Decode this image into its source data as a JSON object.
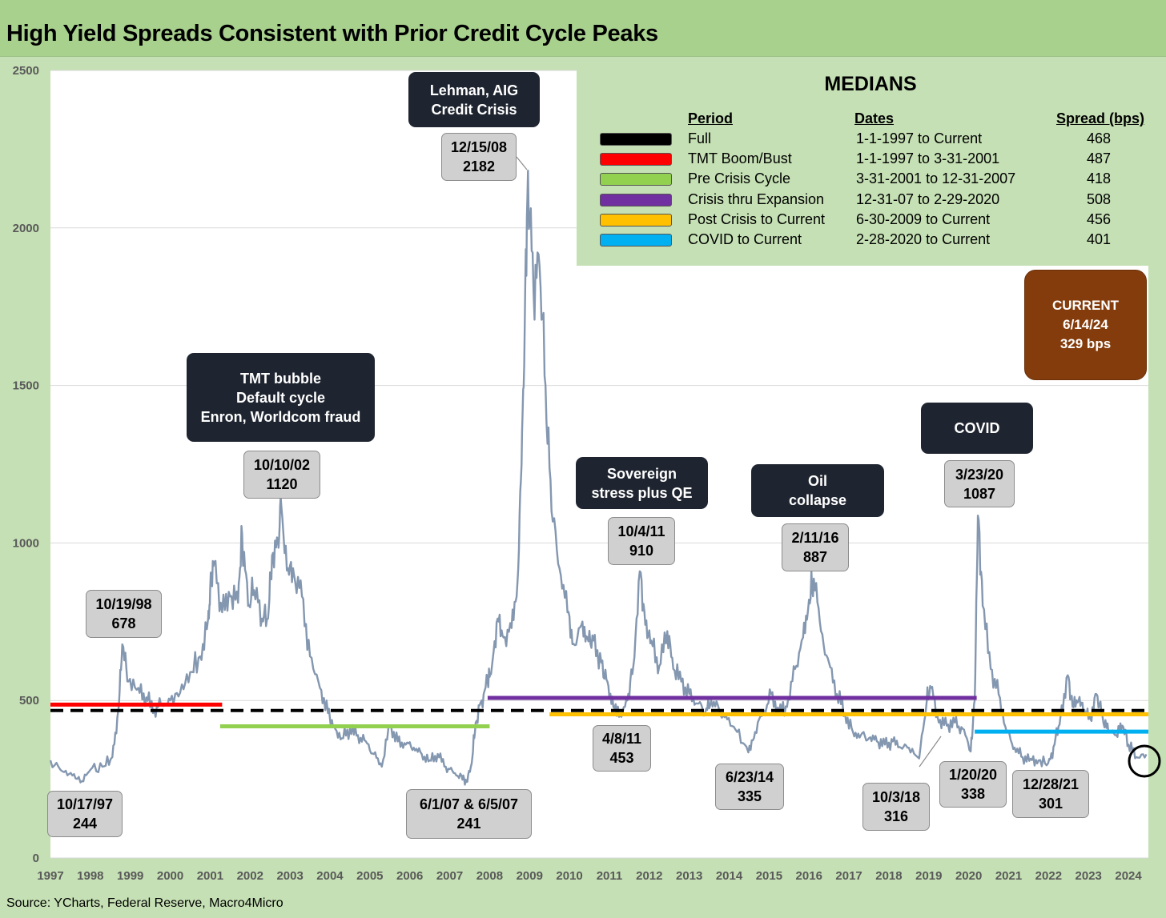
{
  "title": "High Yield Spreads Consistent with Prior Credit Cycle Peaks",
  "source": "Source: YCharts, Federal Reserve, Macro4Micro",
  "medians": {
    "title": "MEDIANS",
    "headers": {
      "period": "Period",
      "dates": "Dates",
      "spread": "Spread (bps)"
    },
    "rows": [
      {
        "color": "#000000",
        "period": "Full",
        "dates": "1-1-1997 to Current",
        "spread": "468"
      },
      {
        "color": "#ff0000",
        "period": "TMT Boom/Bust",
        "dates": "1-1-1997 to 3-31-2001",
        "spread": "487"
      },
      {
        "color": "#92d050",
        "period": "Pre Crisis Cycle",
        "dates": "3-31-2001 to 12-31-2007",
        "spread": "418"
      },
      {
        "color": "#7030a0",
        "period": "Crisis thru Expansion",
        "dates": "12-31-07 to 2-29-2020",
        "spread": "508"
      },
      {
        "color": "#ffc000",
        "period": "Post Crisis to Current",
        "dates": "6-30-2009 to Current",
        "spread": "456"
      },
      {
        "color": "#00b0f0",
        "period": "COVID to Current",
        "dates": "2-28-2020 to Current",
        "spread": "401"
      }
    ]
  },
  "callouts": [
    {
      "id": "tmt",
      "text": "TMT bubble\nDefault cycle\nEnron, Worldcom fraud"
    },
    {
      "id": "lehman",
      "text": "Lehman, AIG\nCredit Crisis"
    },
    {
      "id": "sovereign",
      "text": "Sovereign\nstress plus QE"
    },
    {
      "id": "oil",
      "text": "Oil\ncollapse"
    },
    {
      "id": "covid",
      "text": "COVID"
    }
  ],
  "current": {
    "label": "CURRENT",
    "date": "6/14/24",
    "value": "329 bps"
  },
  "point_labels": [
    {
      "date": "10/17/97",
      "value": "244"
    },
    {
      "date": "10/19/98",
      "value": "678"
    },
    {
      "date": "10/10/02",
      "value": "1120"
    },
    {
      "date": "6/1/07 & 6/5/07",
      "value": "241"
    },
    {
      "date": "12/15/08",
      "value": "2182"
    },
    {
      "date": "10/4/11",
      "value": "910"
    },
    {
      "date": "4/8/11",
      "value": "453"
    },
    {
      "date": "6/23/14",
      "value": "335"
    },
    {
      "date": "2/11/16",
      "value": "887"
    },
    {
      "date": "10/3/18",
      "value": "316"
    },
    {
      "date": "3/23/20",
      "value": "1087"
    },
    {
      "date": "1/20/20",
      "value": "338"
    },
    {
      "date": "12/28/21",
      "value": "301"
    }
  ],
  "chart_data": {
    "type": "line",
    "title": "High Yield Spreads Consistent with Prior Credit Cycle Peaks",
    "xlabel": "",
    "ylabel": "",
    "ylim": [
      0,
      2500
    ],
    "xlim": [
      1997,
      2024.5
    ],
    "yticks": [
      0,
      500,
      1000,
      1500,
      2000,
      2500
    ],
    "xticks": [
      "1997",
      "1998",
      "1999",
      "2000",
      "2001",
      "2002",
      "2003",
      "2004",
      "2005",
      "2006",
      "2007",
      "2008",
      "2009",
      "2010",
      "2011",
      "2012",
      "2013",
      "2014",
      "2015",
      "2016",
      "2017",
      "2018",
      "2019",
      "2020",
      "2021",
      "2022",
      "2023",
      "2024"
    ],
    "grid": true,
    "series": [
      {
        "color": "#8497b0",
        "points": [
          [
            1997.0,
            310
          ],
          [
            1997.3,
            275
          ],
          [
            1997.55,
            262
          ],
          [
            1997.79,
            244
          ],
          [
            1998.0,
            280
          ],
          [
            1998.3,
            290
          ],
          [
            1998.55,
            320
          ],
          [
            1998.7,
            470
          ],
          [
            1998.8,
            678
          ],
          [
            1998.95,
            560
          ],
          [
            1999.2,
            540
          ],
          [
            1999.4,
            510
          ],
          [
            1999.6,
            470
          ],
          [
            1999.8,
            490
          ],
          [
            2000.0,
            500
          ],
          [
            2000.25,
            525
          ],
          [
            2000.5,
            590
          ],
          [
            2000.75,
            640
          ],
          [
            2000.95,
            760
          ],
          [
            2001.0,
            850
          ],
          [
            2001.1,
            940
          ],
          [
            2001.3,
            780
          ],
          [
            2001.5,
            830
          ],
          [
            2001.7,
            810
          ],
          [
            2001.8,
            1030
          ],
          [
            2001.95,
            800
          ],
          [
            2002.1,
            850
          ],
          [
            2002.3,
            760
          ],
          [
            2002.45,
            760
          ],
          [
            2002.55,
            960
          ],
          [
            2002.7,
            1010
          ],
          [
            2002.78,
            1120
          ],
          [
            2002.95,
            920
          ],
          [
            2003.1,
            900
          ],
          [
            2003.3,
            830
          ],
          [
            2003.5,
            640
          ],
          [
            2003.75,
            540
          ],
          [
            2003.95,
            460
          ],
          [
            2004.1,
            420
          ],
          [
            2004.3,
            380
          ],
          [
            2004.5,
            410
          ],
          [
            2004.7,
            390
          ],
          [
            2004.9,
            370
          ],
          [
            2005.1,
            330
          ],
          [
            2005.3,
            290
          ],
          [
            2005.5,
            420
          ],
          [
            2005.7,
            370
          ],
          [
            2005.9,
            360
          ],
          [
            2006.1,
            350
          ],
          [
            2006.3,
            330
          ],
          [
            2006.5,
            310
          ],
          [
            2006.7,
            330
          ],
          [
            2006.9,
            290
          ],
          [
            2007.1,
            270
          ],
          [
            2007.3,
            260
          ],
          [
            2007.42,
            241
          ],
          [
            2007.55,
            300
          ],
          [
            2007.65,
            430
          ],
          [
            2007.8,
            500
          ],
          [
            2007.95,
            560
          ],
          [
            2008.05,
            600
          ],
          [
            2008.2,
            760
          ],
          [
            2008.35,
            700
          ],
          [
            2008.55,
            730
          ],
          [
            2008.7,
            880
          ],
          [
            2008.8,
            1250
          ],
          [
            2008.88,
            1700
          ],
          [
            2008.96,
            2182
          ],
          [
            2009.1,
            1800
          ],
          [
            2009.25,
            1880
          ],
          [
            2009.4,
            1500
          ],
          [
            2009.55,
            1100
          ],
          [
            2009.75,
            920
          ],
          [
            2009.95,
            780
          ],
          [
            2010.1,
            680
          ],
          [
            2010.3,
            740
          ],
          [
            2010.45,
            700
          ],
          [
            2010.6,
            690
          ],
          [
            2010.8,
            620
          ],
          [
            2010.95,
            560
          ],
          [
            2011.1,
            480
          ],
          [
            2011.27,
            453
          ],
          [
            2011.45,
            500
          ],
          [
            2011.6,
            610
          ],
          [
            2011.76,
            910
          ],
          [
            2011.9,
            740
          ],
          [
            2012.05,
            690
          ],
          [
            2012.25,
            610
          ],
          [
            2012.45,
            720
          ],
          [
            2012.6,
            600
          ],
          [
            2012.8,
            560
          ],
          [
            2013.0,
            520
          ],
          [
            2013.2,
            490
          ],
          [
            2013.4,
            460
          ],
          [
            2013.55,
            500
          ],
          [
            2013.75,
            470
          ],
          [
            2013.95,
            440
          ],
          [
            2014.2,
            400
          ],
          [
            2014.48,
            335
          ],
          [
            2014.65,
            400
          ],
          [
            2014.85,
            460
          ],
          [
            2015.05,
            520
          ],
          [
            2015.25,
            460
          ],
          [
            2015.45,
            480
          ],
          [
            2015.65,
            600
          ],
          [
            2015.85,
            700
          ],
          [
            2016.0,
            820
          ],
          [
            2016.12,
            887
          ],
          [
            2016.3,
            720
          ],
          [
            2016.5,
            620
          ],
          [
            2016.7,
            520
          ],
          [
            2016.9,
            460
          ],
          [
            2017.1,
            400
          ],
          [
            2017.3,
            390
          ],
          [
            2017.5,
            380
          ],
          [
            2017.7,
            370
          ],
          [
            2017.9,
            360
          ],
          [
            2018.1,
            370
          ],
          [
            2018.3,
            350
          ],
          [
            2018.5,
            350
          ],
          [
            2018.76,
            316
          ],
          [
            2018.95,
            500
          ],
          [
            2019.05,
            540
          ],
          [
            2019.25,
            430
          ],
          [
            2019.45,
            420
          ],
          [
            2019.65,
            430
          ],
          [
            2019.85,
            410
          ],
          [
            2020.05,
            338
          ],
          [
            2020.15,
            500
          ],
          [
            2020.23,
            1087
          ],
          [
            2020.35,
            800
          ],
          [
            2020.55,
            600
          ],
          [
            2020.75,
            520
          ],
          [
            2020.95,
            400
          ],
          [
            2021.15,
            350
          ],
          [
            2021.35,
            320
          ],
          [
            2021.55,
            315
          ],
          [
            2021.75,
            310
          ],
          [
            2021.99,
            301
          ],
          [
            2022.15,
            360
          ],
          [
            2022.3,
            450
          ],
          [
            2022.48,
            580
          ],
          [
            2022.6,
            480
          ],
          [
            2022.75,
            500
          ],
          [
            2022.9,
            470
          ],
          [
            2023.05,
            440
          ],
          [
            2023.2,
            520
          ],
          [
            2023.35,
            450
          ],
          [
            2023.5,
            400
          ],
          [
            2023.7,
            390
          ],
          [
            2023.85,
            420
          ],
          [
            2024.0,
            360
          ],
          [
            2024.2,
            320
          ],
          [
            2024.45,
            329
          ]
        ]
      }
    ],
    "reference_lines": [
      {
        "name": "Full",
        "color": "#000000",
        "style": "dashed",
        "y": 468,
        "x_start": 1997.0,
        "x_end": 2024.5
      },
      {
        "name": "TMT Boom/Bust",
        "color": "#ff0000",
        "y": 487,
        "x_start": 1997.0,
        "x_end": 2001.3
      },
      {
        "name": "Pre Crisis Cycle",
        "color": "#92d050",
        "y": 418,
        "x_start": 2001.25,
        "x_end": 2008.0
      },
      {
        "name": "Crisis thru Expansion",
        "color": "#7030a0",
        "y": 508,
        "x_start": 2007.95,
        "x_end": 2020.2
      },
      {
        "name": "Post Crisis to Current",
        "color": "#ffc000",
        "y": 456,
        "x_start": 2009.5,
        "x_end": 2024.5
      },
      {
        "name": "COVID to Current",
        "color": "#00b0f0",
        "y": 401,
        "x_start": 2020.15,
        "x_end": 2024.5
      }
    ]
  }
}
